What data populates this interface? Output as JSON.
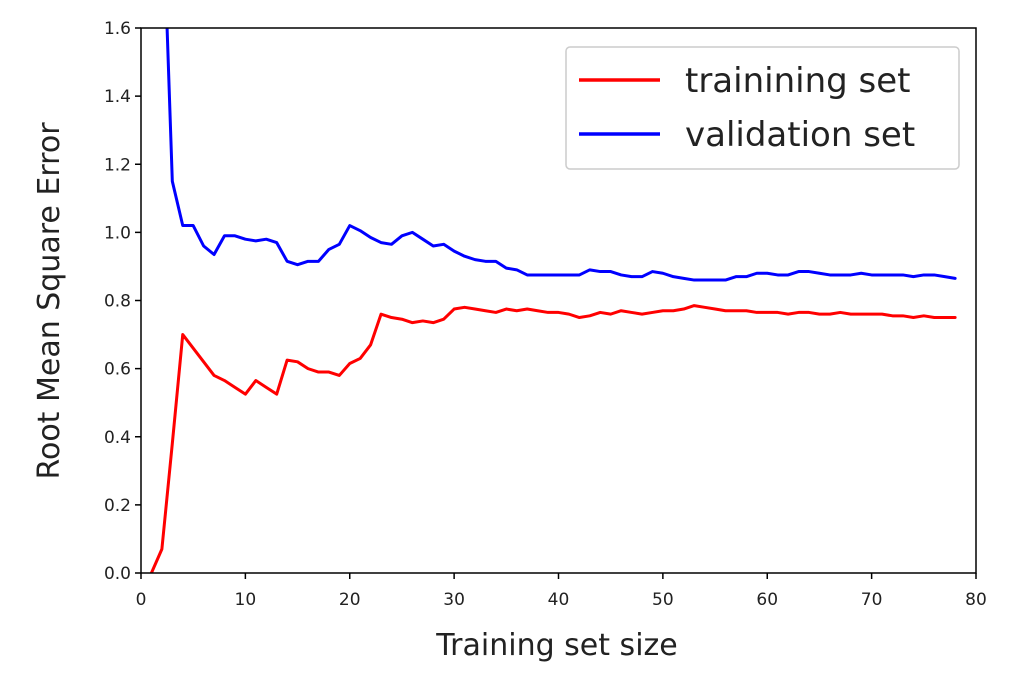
{
  "chart_data": {
    "type": "line",
    "xlabel": "Training set size",
    "ylabel": "Root Mean Square Error",
    "xlim": [
      0,
      80
    ],
    "ylim": [
      0,
      1.6
    ],
    "xticks": [
      0,
      10,
      20,
      30,
      40,
      50,
      60,
      70,
      80
    ],
    "yticks": [
      0.0,
      0.2,
      0.4,
      0.6,
      0.8,
      1.0,
      1.2,
      1.4,
      1.6
    ],
    "ytick_labels": [
      "0.0",
      "0.2",
      "0.4",
      "0.6",
      "0.8",
      "1.0",
      "1.2",
      "1.4",
      "1.6"
    ],
    "grid": false,
    "legend_position": "top-right",
    "series": [
      {
        "name": "trainining set",
        "color": "#ff0000",
        "x": [
          1,
          2,
          3,
          4,
          5,
          6,
          7,
          8,
          9,
          10,
          11,
          12,
          13,
          14,
          15,
          16,
          17,
          18,
          19,
          20,
          21,
          22,
          23,
          24,
          25,
          26,
          27,
          28,
          29,
          30,
          31,
          32,
          33,
          34,
          35,
          36,
          37,
          38,
          39,
          40,
          41,
          42,
          43,
          44,
          45,
          46,
          47,
          48,
          49,
          50,
          51,
          52,
          53,
          54,
          55,
          56,
          57,
          58,
          59,
          60,
          61,
          62,
          63,
          64,
          65,
          66,
          67,
          68,
          69,
          70,
          71,
          72,
          73,
          74,
          75,
          76,
          77,
          78
        ],
        "y": [
          0.0,
          0.07,
          0.38,
          0.7,
          0.66,
          0.62,
          0.58,
          0.565,
          0.545,
          0.525,
          0.565,
          0.545,
          0.525,
          0.625,
          0.62,
          0.6,
          0.59,
          0.59,
          0.58,
          0.615,
          0.63,
          0.67,
          0.76,
          0.75,
          0.745,
          0.735,
          0.74,
          0.735,
          0.745,
          0.775,
          0.78,
          0.775,
          0.77,
          0.765,
          0.775,
          0.77,
          0.775,
          0.77,
          0.765,
          0.765,
          0.76,
          0.75,
          0.755,
          0.765,
          0.76,
          0.77,
          0.765,
          0.76,
          0.765,
          0.77,
          0.77,
          0.775,
          0.785,
          0.78,
          0.775,
          0.77,
          0.77,
          0.77,
          0.765,
          0.765,
          0.765,
          0.76,
          0.765,
          0.765,
          0.76,
          0.76,
          0.765,
          0.76,
          0.76,
          0.76,
          0.76,
          0.755,
          0.755,
          0.75,
          0.755,
          0.75,
          0.75,
          0.75
        ]
      },
      {
        "name": "validation set",
        "color": "#0000ff",
        "x": [
          2.5,
          3,
          4,
          5,
          6,
          7,
          8,
          9,
          10,
          11,
          12,
          13,
          14,
          15,
          16,
          17,
          18,
          19,
          20,
          21,
          22,
          23,
          24,
          25,
          26,
          27,
          28,
          29,
          30,
          31,
          32,
          33,
          34,
          35,
          36,
          37,
          38,
          39,
          40,
          41,
          42,
          43,
          44,
          45,
          46,
          47,
          48,
          49,
          50,
          51,
          52,
          53,
          54,
          55,
          56,
          57,
          58,
          59,
          60,
          61,
          62,
          63,
          64,
          65,
          66,
          67,
          68,
          69,
          70,
          71,
          72,
          73,
          74,
          75,
          76,
          77,
          78
        ],
        "y": [
          1.6,
          1.15,
          1.02,
          1.02,
          0.96,
          0.935,
          0.99,
          0.99,
          0.98,
          0.975,
          0.98,
          0.97,
          0.915,
          0.905,
          0.915,
          0.915,
          0.95,
          0.965,
          1.02,
          1.005,
          0.985,
          0.97,
          0.965,
          0.99,
          1.0,
          0.98,
          0.96,
          0.965,
          0.945,
          0.93,
          0.92,
          0.915,
          0.915,
          0.895,
          0.89,
          0.875,
          0.875,
          0.875,
          0.875,
          0.875,
          0.875,
          0.89,
          0.885,
          0.885,
          0.875,
          0.87,
          0.87,
          0.885,
          0.88,
          0.87,
          0.865,
          0.86,
          0.86,
          0.86,
          0.86,
          0.87,
          0.87,
          0.88,
          0.88,
          0.875,
          0.875,
          0.885,
          0.885,
          0.88,
          0.875,
          0.875,
          0.875,
          0.88,
          0.875,
          0.875,
          0.875,
          0.875,
          0.87,
          0.875,
          0.875,
          0.87,
          0.865
        ]
      }
    ]
  }
}
